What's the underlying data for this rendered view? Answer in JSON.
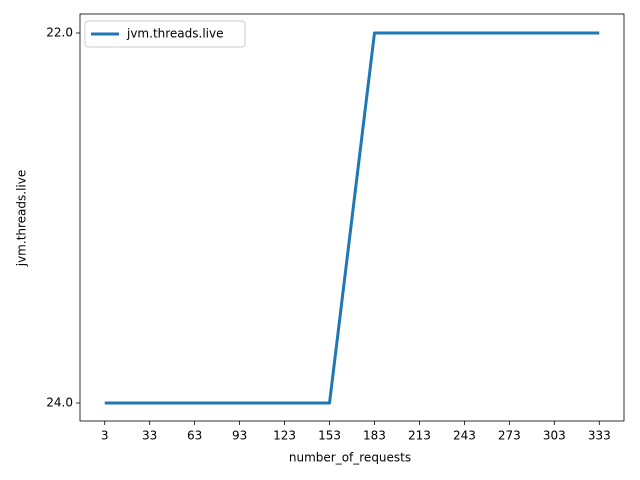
{
  "chart_data": {
    "type": "line",
    "xlabel": "number_of_requests",
    "ylabel": "jvm.threads.live",
    "x": [
      3,
      33,
      63,
      93,
      123,
      153,
      183,
      213,
      243,
      273,
      303,
      333
    ],
    "series": [
      {
        "name": "jvm.threads.live",
        "color": "#1f77b4",
        "values": [
          24.0,
          24.0,
          24.0,
          24.0,
          24.0,
          24.0,
          22.0,
          22.0,
          22.0,
          22.0,
          22.0,
          22.0
        ]
      }
    ],
    "xlim": [
      -13.5,
      349.5
    ],
    "xticks": [
      3,
      33,
      63,
      93,
      123,
      153,
      183,
      213,
      243,
      273,
      303,
      333
    ],
    "yticks": [
      {
        "value": 24.0,
        "label": "24.0"
      },
      {
        "value": 22.0,
        "label": "22.0"
      }
    ],
    "legend": "upper left"
  }
}
